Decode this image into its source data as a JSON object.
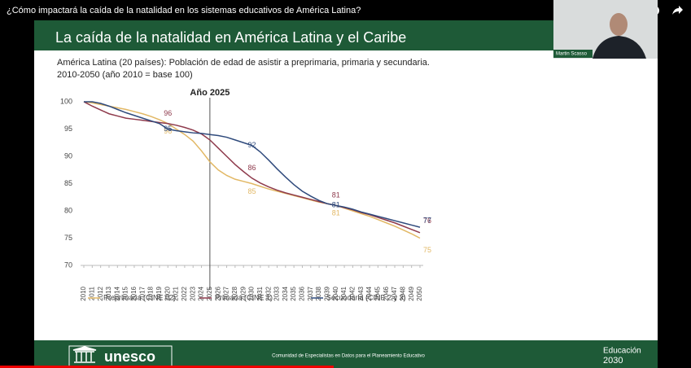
{
  "video_title": "¿Cómo impactará la caída de la natalidad en los sistemas educativos de América Latina?",
  "presenter": "Martin Scasso",
  "slide_title": "La caída de la natalidad en América Latina y el Caribe",
  "footer": {
    "org": "unesco",
    "text": "Comunidad de Especialistas en Datos para el Planeamiento Educativo",
    "brand_line1": "Educación",
    "brand_line2": "2030"
  },
  "chart_data": {
    "type": "line",
    "title": "América Latina (20 países): Población de edad de asistir a preprimaria, primaria y  secundaria.",
    "subtitle": "2010-2050 (año 2010 = base 100)",
    "x": [
      2010,
      2011,
      2012,
      2013,
      2014,
      2015,
      2016,
      2017,
      2018,
      2019,
      2020,
      2021,
      2022,
      2023,
      2024,
      2025,
      2026,
      2027,
      2028,
      2029,
      2030,
      2031,
      2032,
      2033,
      2034,
      2035,
      2036,
      2037,
      2038,
      2039,
      2040,
      2041,
      2042,
      2043,
      2044,
      2045,
      2046,
      2047,
      2048,
      2049,
      2050
    ],
    "xlim": [
      2010,
      2050
    ],
    "ylim": [
      70,
      100
    ],
    "yticks": [
      70,
      75,
      80,
      85,
      90,
      95,
      100
    ],
    "grid": false,
    "vline": {
      "x": 2025,
      "label": "Año 2025"
    },
    "series": [
      {
        "name": "Preprimaria (CINE 02)",
        "color": "#e2b865",
        "values": [
          100,
          99.8,
          99.5,
          99.2,
          98.9,
          98.6,
          98.2,
          97.8,
          97.3,
          96.7,
          96,
          95,
          94,
          92.8,
          91,
          89,
          87.5,
          86.5,
          85.8,
          85.4,
          85,
          84.5,
          84,
          83.6,
          83.2,
          82.8,
          82.4,
          82,
          81.6,
          81.3,
          81,
          80.5,
          80,
          79.5,
          79,
          78.4,
          77.8,
          77.2,
          76.5,
          75.8,
          75
        ]
      },
      {
        "name": "Primaria (CINE 1)",
        "color": "#8e3a4c",
        "values": [
          100,
          99.2,
          98.5,
          97.8,
          97.4,
          97,
          96.8,
          96.6,
          96.4,
          96.2,
          96,
          95.7,
          95.3,
          94.8,
          94.1,
          93,
          91.5,
          90,
          88.5,
          87.2,
          86,
          85.1,
          84.4,
          83.8,
          83.3,
          82.9,
          82.5,
          82.1,
          81.7,
          81.3,
          81,
          80.6,
          80.2,
          79.7,
          79.3,
          78.8,
          78.3,
          77.8,
          77.2,
          76.6,
          76
        ]
      },
      {
        "name": "Secundaria (CINE 2 y 3)",
        "color": "#2f4a7c",
        "values": [
          100,
          100,
          99.7,
          99.2,
          98.6,
          98,
          97.5,
          97,
          96.5,
          96,
          95,
          94.7,
          94.5,
          94.3,
          94.2,
          94,
          93.8,
          93.5,
          93,
          92.5,
          92,
          90.8,
          89.3,
          87.7,
          86.2,
          84.8,
          83.6,
          82.7,
          81.9,
          81.3,
          81,
          80.7,
          80.3,
          79.8,
          79.4,
          79,
          78.6,
          78.2,
          77.8,
          77.4,
          77
        ]
      }
    ]
  }
}
